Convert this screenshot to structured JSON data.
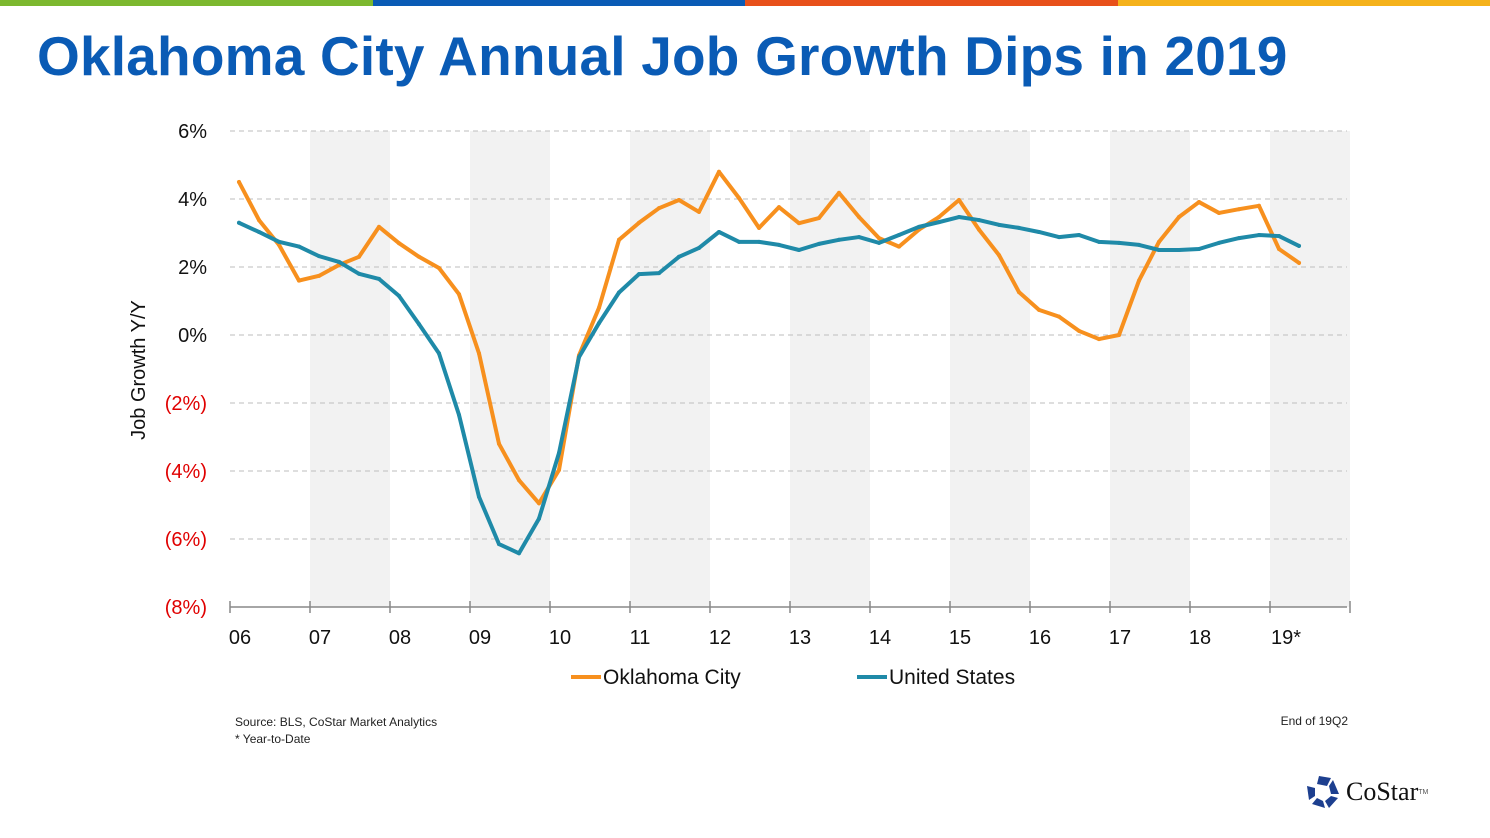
{
  "title": "Oklahoma City Annual Job Growth Dips in 2019",
  "top_bar_colors": [
    "#7cb82f",
    "#0a5bb5",
    "#e8501a",
    "#f5b21b"
  ],
  "source": "Source: BLS, CoStar Market Analytics",
  "footnote": "* Year-to-Date",
  "as_of": "End of 19Q2",
  "logo": "CoStar",
  "chart_data": {
    "type": "line",
    "title": "",
    "xlabel": "",
    "ylabel": "Job Growth Y/Y",
    "ylim": [
      -8,
      6
    ],
    "y_ticks": [
      6,
      4,
      2,
      0,
      -2,
      -4,
      -6,
      -8
    ],
    "y_tick_labels": [
      "6%",
      "4%",
      "2%",
      "0%",
      "(2%)",
      "(4%)",
      "(6%)",
      "(8%)"
    ],
    "negative_label_color": "#e00000",
    "x_tick_labels": [
      "06",
      "07",
      "08",
      "09",
      "10",
      "11",
      "12",
      "13",
      "14",
      "15",
      "16",
      "17",
      "18",
      "19*"
    ],
    "x_start": "2006Q1",
    "x_frequency": "quarterly",
    "shaded_years": [
      "07",
      "09",
      "11",
      "13",
      "15",
      "17",
      "19*"
    ],
    "grid": "horizontal dashed",
    "legend_position": "bottom",
    "series": [
      {
        "name": "Oklahoma City",
        "color": "#f7901e",
        "values": [
          4.5,
          3.38,
          2.65,
          1.6,
          1.74,
          2.06,
          2.3,
          3.18,
          2.7,
          2.3,
          1.97,
          1.2,
          -0.54,
          -3.2,
          -4.27,
          -4.95,
          -3.97,
          -0.6,
          0.8,
          2.8,
          3.3,
          3.73,
          3.97,
          3.62,
          4.8,
          4.03,
          3.15,
          3.76,
          3.29,
          3.44,
          4.18,
          3.47,
          2.85,
          2.6,
          3.1,
          3.47,
          3.97,
          3.1,
          2.35,
          1.26,
          0.74,
          0.54,
          0.12,
          -0.12,
          0,
          1.6,
          2.74,
          3.47,
          3.91,
          3.59,
          3.7,
          3.8,
          2.53,
          2.12
        ]
      },
      {
        "name": "United States",
        "color": "#1f8aa8",
        "values": [
          3.3,
          3.03,
          2.74,
          2.6,
          2.32,
          2.15,
          1.8,
          1.65,
          1.15,
          0.32,
          -0.54,
          -2.35,
          -4.76,
          -6.15,
          -6.42,
          -5.4,
          -3.47,
          -0.65,
          0.35,
          1.25,
          1.79,
          1.82,
          2.3,
          2.56,
          3.03,
          2.74,
          2.74,
          2.65,
          2.5,
          2.68,
          2.8,
          2.88,
          2.71,
          2.94,
          3.18,
          3.32,
          3.47,
          3.38,
          3.24,
          3.15,
          3.03,
          2.88,
          2.94,
          2.74,
          2.71,
          2.65,
          2.5,
          2.5,
          2.53,
          2.71,
          2.85,
          2.94,
          2.91,
          2.62
        ]
      }
    ]
  }
}
